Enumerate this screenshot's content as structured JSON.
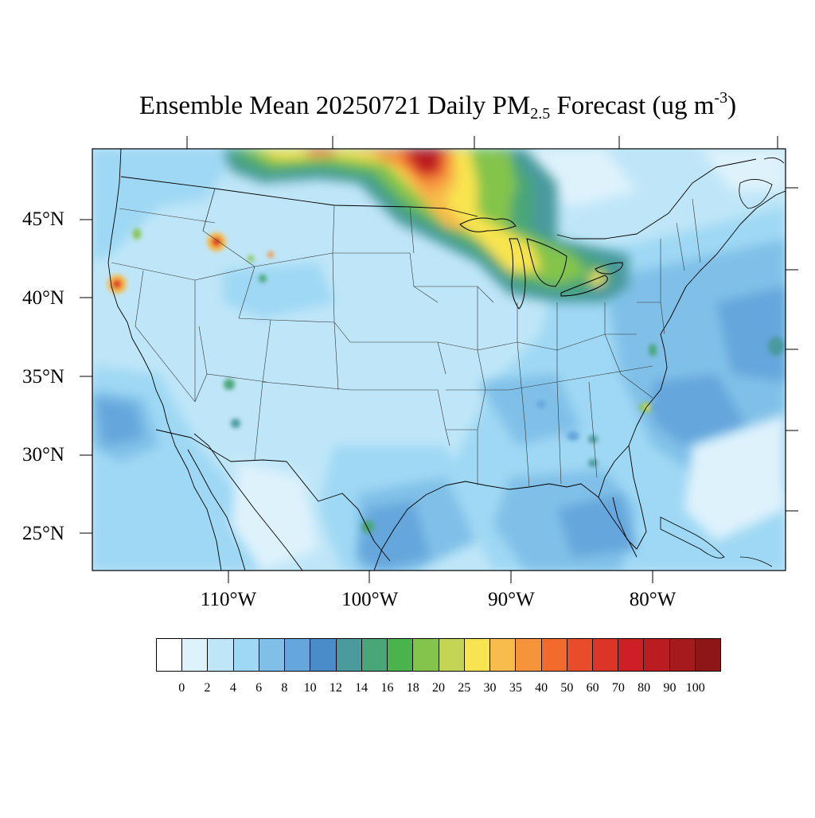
{
  "title": {
    "prefix": "Ensemble Mean 20250721 Daily PM",
    "sub": "2.5",
    "middle": " Forecast (ug m",
    "sup": "-3",
    "suffix": ")"
  },
  "latitude_labels": [
    {
      "text": "45°N",
      "lat": 45
    },
    {
      "text": "40°N",
      "lat": 40
    },
    {
      "text": "35°N",
      "lat": 35
    },
    {
      "text": "30°N",
      "lat": 30
    },
    {
      "text": "25°N",
      "lat": 25
    }
  ],
  "longitude_labels": [
    {
      "text": "110°W",
      "lon": -110
    },
    {
      "text": "100°W",
      "lon": -100
    },
    {
      "text": "90°W",
      "lon": -90
    },
    {
      "text": "80°W",
      "lon": -80
    }
  ],
  "colorbar": {
    "colors": [
      "#ffffff",
      "#def2fc",
      "#bfe6f8",
      "#9fd8f4",
      "#80c0e8",
      "#65a6dc",
      "#4a8cca",
      "#4a9a9e",
      "#48a678",
      "#4ab44c",
      "#84c44c",
      "#c4d454",
      "#f8e450",
      "#f8bc4c",
      "#f6943c",
      "#f26a2c",
      "#e84c2a",
      "#dc3426",
      "#ce1f26",
      "#ba1c22",
      "#a61a1e",
      "#8e1616"
    ],
    "labels": [
      "0",
      "2",
      "4",
      "6",
      "8",
      "10",
      "12",
      "14",
      "16",
      "18",
      "20",
      "25",
      "30",
      "35",
      "40",
      "50",
      "60",
      "70",
      "80",
      "90",
      "100"
    ]
  }
}
